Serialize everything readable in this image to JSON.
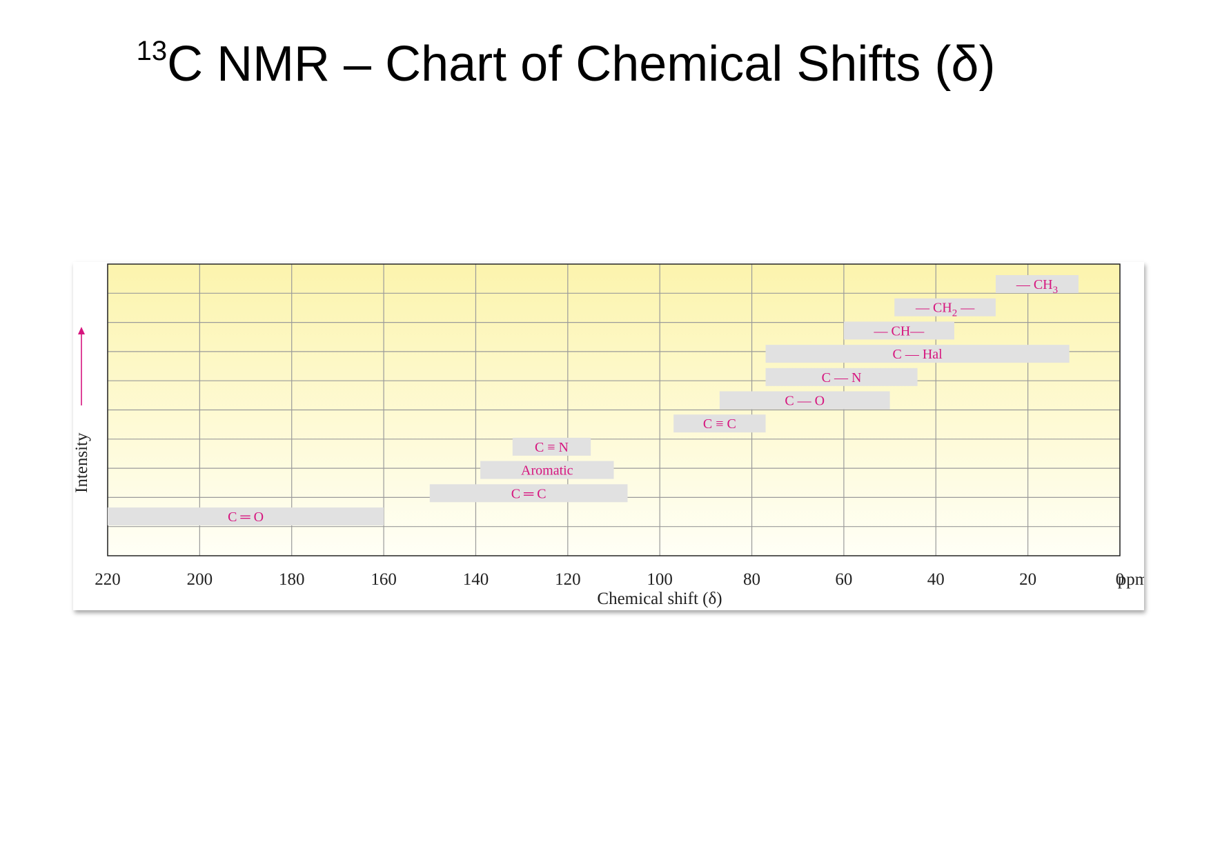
{
  "title": {
    "sup": "13",
    "main": "C NMR – Chart of Chemical Shifts (δ)"
  },
  "chart_data": {
    "type": "bar",
    "orientation": "horizontal-range",
    "xlabel": "Chemical shift (δ)",
    "xunit": "ppm",
    "ylabel": "Intensity",
    "xlim": [
      220,
      0
    ],
    "xticks": [
      220,
      200,
      180,
      160,
      140,
      120,
      100,
      80,
      60,
      40,
      20,
      0
    ],
    "grid": true,
    "ranges": [
      {
        "label": "— CH",
        "sub": "3",
        "after": "",
        "start": 27,
        "end": 9,
        "row": 1
      },
      {
        "label": "— CH",
        "sub": "2",
        "after": " —",
        "start": 49,
        "end": 27,
        "row": 2
      },
      {
        "label": "— CH—",
        "sub": "",
        "after": "",
        "start": 60,
        "end": 36,
        "row": 3
      },
      {
        "label": "C — Hal",
        "sub": "",
        "after": "",
        "start": 77,
        "end": 11,
        "row": 4
      },
      {
        "label": "C — N",
        "sub": "",
        "after": "",
        "start": 77,
        "end": 44,
        "row": 5
      },
      {
        "label": "C — O",
        "sub": "",
        "after": "",
        "start": 87,
        "end": 50,
        "row": 6
      },
      {
        "label": "C ≡ C",
        "sub": "",
        "after": "",
        "start": 97,
        "end": 77,
        "row": 7
      },
      {
        "label": "C ≡ N",
        "sub": "",
        "after": "",
        "start": 132,
        "end": 115,
        "row": 8
      },
      {
        "label": "Aromatic",
        "sub": "",
        "after": "",
        "start": 139,
        "end": 110,
        "row": 9
      },
      {
        "label": "C ═ C",
        "sub": "",
        "after": "",
        "start": 150,
        "end": 107,
        "row": 10
      },
      {
        "label": "C ═ O",
        "sub": "",
        "after": "",
        "start": 220,
        "end": 160,
        "row": 11
      }
    ],
    "colors": {
      "label": "#d6157e",
      "range_fill": "#e1e1e1",
      "grid": "#9a9a9a",
      "bg_top": "#fcf4ad",
      "bg_bottom": "#fffff6",
      "axis_text": "#222222",
      "arrow": "#d6157e"
    }
  }
}
